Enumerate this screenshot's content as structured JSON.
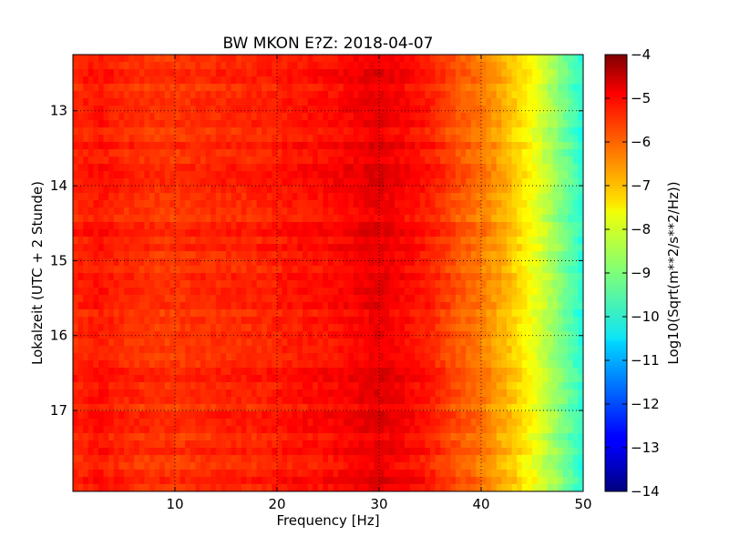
{
  "chart_data": {
    "type": "heatmap",
    "title": "BW MKON E?Z: 2018-04-07",
    "xlabel": "Frequency [Hz]",
    "ylabel": "Lokalzeit (UTC + 2 Stunde)",
    "xlim": [
      0,
      50
    ],
    "ylim": [
      12.25,
      18.08
    ],
    "y_inverted": true,
    "x_ticks": [
      10,
      20,
      30,
      40,
      50
    ],
    "x_tick_labels": [
      "10",
      "20",
      "30",
      "40",
      "50"
    ],
    "y_ticks": [
      13,
      14,
      15,
      16,
      17
    ],
    "y_tick_labels": [
      "13",
      "14",
      "15",
      "16",
      "17"
    ],
    "grid": true,
    "colorbar": {
      "label": "Log10(Sqrt(m**2/s**2/Hz))",
      "range": [
        -14,
        -4
      ],
      "colormap": "jet",
      "ticks": [
        -4,
        -5,
        -6,
        -7,
        -8,
        -9,
        -10,
        -11,
        -12,
        -13,
        -14
      ],
      "tick_labels": [
        "−4",
        "−5",
        "−6",
        "−7",
        "−8",
        "−9",
        "−10",
        "−11",
        "−12",
        "−13",
        "−14"
      ]
    },
    "frequency_profile": {
      "frequencies": [
        0,
        2.5,
        5,
        7.5,
        10,
        12.5,
        15,
        17.5,
        20,
        22.5,
        25,
        27.5,
        30,
        32.5,
        35,
        37.5,
        40,
        42.5,
        45,
        47.5,
        50
      ],
      "log_psd": [
        -5.6,
        -5.4,
        -5.6,
        -5.7,
        -5.75,
        -5.65,
        -5.6,
        -5.6,
        -5.5,
        -5.4,
        -5.35,
        -5.2,
        -5.0,
        -5.25,
        -5.5,
        -6.0,
        -6.4,
        -7.0,
        -7.8,
        -8.8,
        -9.9
      ]
    }
  }
}
